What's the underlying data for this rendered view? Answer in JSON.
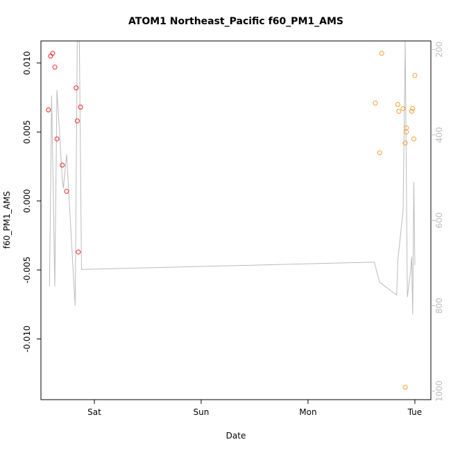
{
  "chart_data": {
    "type": "scatter",
    "title": "ATOM1 Northeast_Pacific f60_PM1_AMS",
    "xlabel": "Date",
    "ylabel": "f60_PM1_AMS",
    "x_ticks": [
      "Sat",
      "Sun",
      "Mon",
      "Tue"
    ],
    "x_tick_values": [
      1.0,
      2.0,
      3.0,
      4.0
    ],
    "xlim": [
      0.5,
      4.15
    ],
    "ylim": [
      -0.0144,
      0.0116
    ],
    "y_ticks": [
      -0.01,
      -0.005,
      0.0,
      0.005,
      0.01
    ],
    "y_tick_labels": [
      "-0.010",
      "-0.005",
      "0.000",
      "0.005",
      "0.010"
    ],
    "y2lim": [
      1020,
      180
    ],
    "y2_ticks": [
      200,
      400,
      600,
      800,
      1000
    ],
    "y2_tick_labels": [
      "200",
      "400",
      "600",
      "800",
      "1000"
    ],
    "colors": {
      "series_a": "#e8211e",
      "series_b": "#f5a030",
      "altitude": "#bbbbbb",
      "axis": "#000000",
      "secondary_axis": "#bbbbbb"
    },
    "series": [
      {
        "color": "#e8211e",
        "x": [
          0.57,
          0.59,
          0.61,
          0.63,
          0.65,
          0.7,
          0.74,
          0.83,
          0.84,
          0.85,
          0.87
        ],
        "y": [
          0.0066,
          0.0105,
          0.0107,
          0.0097,
          0.0045,
          0.0026,
          0.0007,
          0.0082,
          0.0058,
          -0.0037,
          0.0068
        ]
      },
      {
        "color": "#f5a030",
        "x": [
          3.63,
          3.67,
          3.69,
          3.84,
          3.85,
          3.89,
          3.91,
          3.91,
          3.92,
          3.92,
          3.97,
          3.98,
          3.99,
          4.0
        ],
        "y": [
          0.0071,
          0.0035,
          0.0107,
          0.007,
          0.0065,
          0.0067,
          -0.0135,
          0.0042,
          0.0053,
          0.005,
          0.0065,
          0.0067,
          0.0045,
          0.0091
        ]
      }
    ],
    "altitude_line": {
      "color": "#bbbbbb",
      "x": [
        0.58,
        0.6,
        0.63,
        0.65,
        0.7,
        0.71,
        0.74,
        0.82,
        0.84,
        0.86,
        0.88,
        0.89,
        3.62,
        3.67,
        3.83,
        3.84,
        3.89,
        3.91,
        3.93,
        3.96,
        3.97,
        3.98,
        3.99,
        4.0
      ],
      "y": [
        755,
        308,
        755,
        295,
        505,
        525,
        446,
        800,
        180,
        180,
        715,
        715,
        698,
        745,
        775,
        695,
        575,
        180,
        780,
        720,
        685,
        820,
        510,
        705
      ]
    }
  }
}
